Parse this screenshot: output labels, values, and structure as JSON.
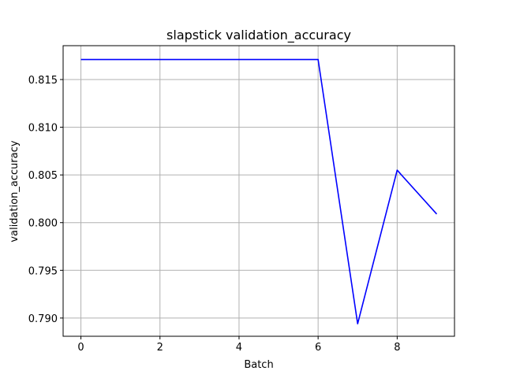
{
  "chart_data": {
    "type": "line",
    "title": "slapstick validation_accuracy",
    "xlabel": "Batch",
    "ylabel": "validation_accuracy",
    "x": [
      0,
      1,
      2,
      3,
      4,
      5,
      6,
      7,
      8,
      9
    ],
    "series": [
      {
        "values": [
          0.8171,
          0.8171,
          0.8171,
          0.8171,
          0.8171,
          0.8171,
          0.8171,
          0.7894,
          0.8055,
          0.8009
        ],
        "color": "#0000ff"
      }
    ],
    "xticks": [
      0,
      2,
      4,
      6,
      8
    ],
    "xtick_labels": [
      "0",
      "2",
      "4",
      "6",
      "8"
    ],
    "yticks": [
      0.79,
      0.795,
      0.8,
      0.805,
      0.81,
      0.815
    ],
    "ytick_labels": [
      "0.790",
      "0.795",
      "0.800",
      "0.805",
      "0.810",
      "0.815"
    ],
    "xlim": [
      -0.45,
      9.45
    ],
    "ylim": [
      0.78809,
      0.81855
    ],
    "grid": true
  }
}
